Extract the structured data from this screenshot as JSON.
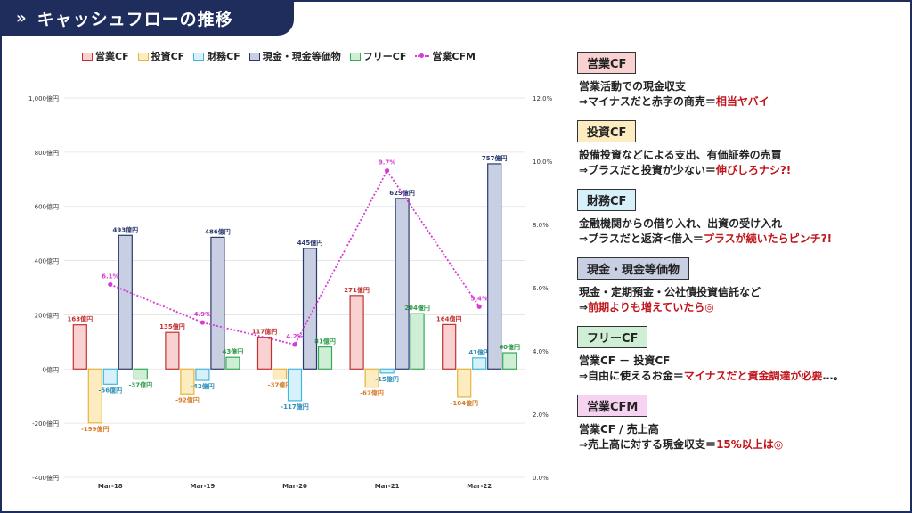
{
  "header": {
    "icon": "double-chevron-right-icon",
    "icon_glyph": "»",
    "title": "キャッシュフローの推移"
  },
  "legend": [
    {
      "key": "op",
      "label": "営業CF"
    },
    {
      "key": "inv",
      "label": "投資CF"
    },
    {
      "key": "fin",
      "label": "財務CF"
    },
    {
      "key": "cash",
      "label": "現金・現金等価物"
    },
    {
      "key": "free",
      "label": "フリーCF"
    },
    {
      "key": "cfm",
      "label": "営業CFM"
    }
  ],
  "colors": {
    "op": {
      "fill": "#f9d1d1",
      "stroke": "#c23232",
      "label": "#c23232"
    },
    "inv": {
      "fill": "#fcecc0",
      "stroke": "#e6b43c",
      "label": "#d97b2a"
    },
    "fin": {
      "fill": "#d7f1fa",
      "stroke": "#43b7db",
      "label": "#2f8fb8"
    },
    "cash": {
      "fill": "#c9cfe2",
      "stroke": "#2b3a6e",
      "label": "#2b3a6e"
    },
    "free": {
      "fill": "#cfeed6",
      "stroke": "#33aa55",
      "label": "#2f9a4b"
    },
    "cfm": {
      "stroke": "#d63ad6",
      "label": "#d63ad6"
    }
  },
  "chart_data": {
    "type": "bar",
    "categories": [
      "Mar-18",
      "Mar-19",
      "Mar-20",
      "Mar-21",
      "Mar-22"
    ],
    "series": [
      {
        "name": "営業CF",
        "key": "op",
        "values": [
          163,
          135,
          117,
          271,
          164
        ],
        "labels": [
          "163億円",
          "135億円",
          "117億円",
          "271億円",
          "164億円"
        ]
      },
      {
        "name": "投資CF",
        "key": "inv",
        "values": [
          -199,
          -92,
          -37,
          -67,
          -104
        ],
        "labels": [
          "-199億円",
          "-92億円",
          "-37億円",
          "-67億円",
          "-104億円"
        ]
      },
      {
        "name": "財務CF",
        "key": "fin",
        "values": [
          -56,
          -42,
          -117,
          -15,
          41
        ],
        "labels": [
          "-56億円",
          "-42億円",
          "-117億円",
          "-15億円",
          "41億円"
        ]
      },
      {
        "name": "現金・現金等価物",
        "key": "cash",
        "values": [
          493,
          486,
          445,
          629,
          757
        ],
        "labels": [
          "493億円",
          "486億円",
          "445億円",
          "629億円",
          "757億円"
        ]
      },
      {
        "name": "フリーCF",
        "key": "free",
        "values": [
          -37,
          43,
          81,
          204,
          60
        ],
        "labels": [
          "-37億円",
          "43億円",
          "81億円",
          "204億円",
          "60億円"
        ]
      }
    ],
    "line_series": {
      "name": "営業CFM",
      "key": "cfm",
      "axis": "right",
      "values": [
        6.1,
        4.9,
        4.2,
        9.7,
        5.4
      ],
      "labels": [
        "6.1%",
        "4.9%",
        "4.2%",
        "9.7%",
        "5.4%"
      ]
    },
    "ylim": [
      -400,
      1000
    ],
    "yticks": [
      -400,
      -200,
      0,
      200,
      400,
      600,
      800,
      1000
    ],
    "ytick_labels": [
      "-400億円",
      "-200億円",
      "0億円",
      "200億円",
      "400億円",
      "600億円",
      "800億円",
      "1,000億円"
    ],
    "y2lim": [
      0,
      12
    ],
    "y2ticks": [
      0,
      2,
      4,
      6,
      8,
      10,
      12
    ],
    "y2tick_labels": [
      "0.0%",
      "2.0%",
      "4.0%",
      "6.0%",
      "8.0%",
      "10.0%",
      "12.0%"
    ],
    "grid": true,
    "legend_position": "top"
  },
  "panel": [
    {
      "title": "営業CF",
      "fill": "#f9d1d1",
      "lines": [
        [
          {
            "t": "営業活動での現金収支",
            "hl": false
          }
        ],
        [
          {
            "t": "⇒マイナスだと赤字の商売＝",
            "hl": false
          },
          {
            "t": "相当ヤバイ",
            "hl": true
          }
        ]
      ]
    },
    {
      "title": "投資CF",
      "fill": "#fcecc0",
      "lines": [
        [
          {
            "t": "設備投資などによる支出、有価証券の売買",
            "hl": false
          }
        ],
        [
          {
            "t": "⇒プラスだと投資が少ない＝",
            "hl": false
          },
          {
            "t": "伸びしろナシ?!",
            "hl": true
          }
        ]
      ]
    },
    {
      "title": "財務CF",
      "fill": "#d7f1fa",
      "lines": [
        [
          {
            "t": "金融機関からの借り入れ、出資の受け入れ",
            "hl": false
          }
        ],
        [
          {
            "t": "⇒プラスだと返済<借入＝",
            "hl": false
          },
          {
            "t": "プラスが続いたらピンチ?!",
            "hl": true
          }
        ]
      ]
    },
    {
      "title": "現金・現金等価物",
      "fill": "#c9cfe2",
      "lines": [
        [
          {
            "t": "現金・定期預金・公社債投資信託など",
            "hl": false
          }
        ],
        [
          {
            "t": "⇒",
            "hl": false
          },
          {
            "t": "前期よりも増えていたら◎",
            "hl": true
          }
        ]
      ]
    },
    {
      "title": "フリーCF",
      "fill": "#cfeed6",
      "lines": [
        [
          {
            "t": "営業CF － 投資CF",
            "hl": false
          }
        ],
        [
          {
            "t": "⇒自由に使えるお金＝",
            "hl": false
          },
          {
            "t": "マイナスだと資金調達が必要",
            "hl": true
          },
          {
            "t": "…。",
            "hl": false
          }
        ]
      ]
    },
    {
      "title": "営業CFM",
      "fill": "#f7d3f2",
      "lines": [
        [
          {
            "t": "営業CF / 売上高",
            "hl": false
          }
        ],
        [
          {
            "t": "⇒売上高に対する現金収支＝",
            "hl": false
          },
          {
            "t": "15%以上は◎",
            "hl": true
          }
        ]
      ]
    }
  ]
}
